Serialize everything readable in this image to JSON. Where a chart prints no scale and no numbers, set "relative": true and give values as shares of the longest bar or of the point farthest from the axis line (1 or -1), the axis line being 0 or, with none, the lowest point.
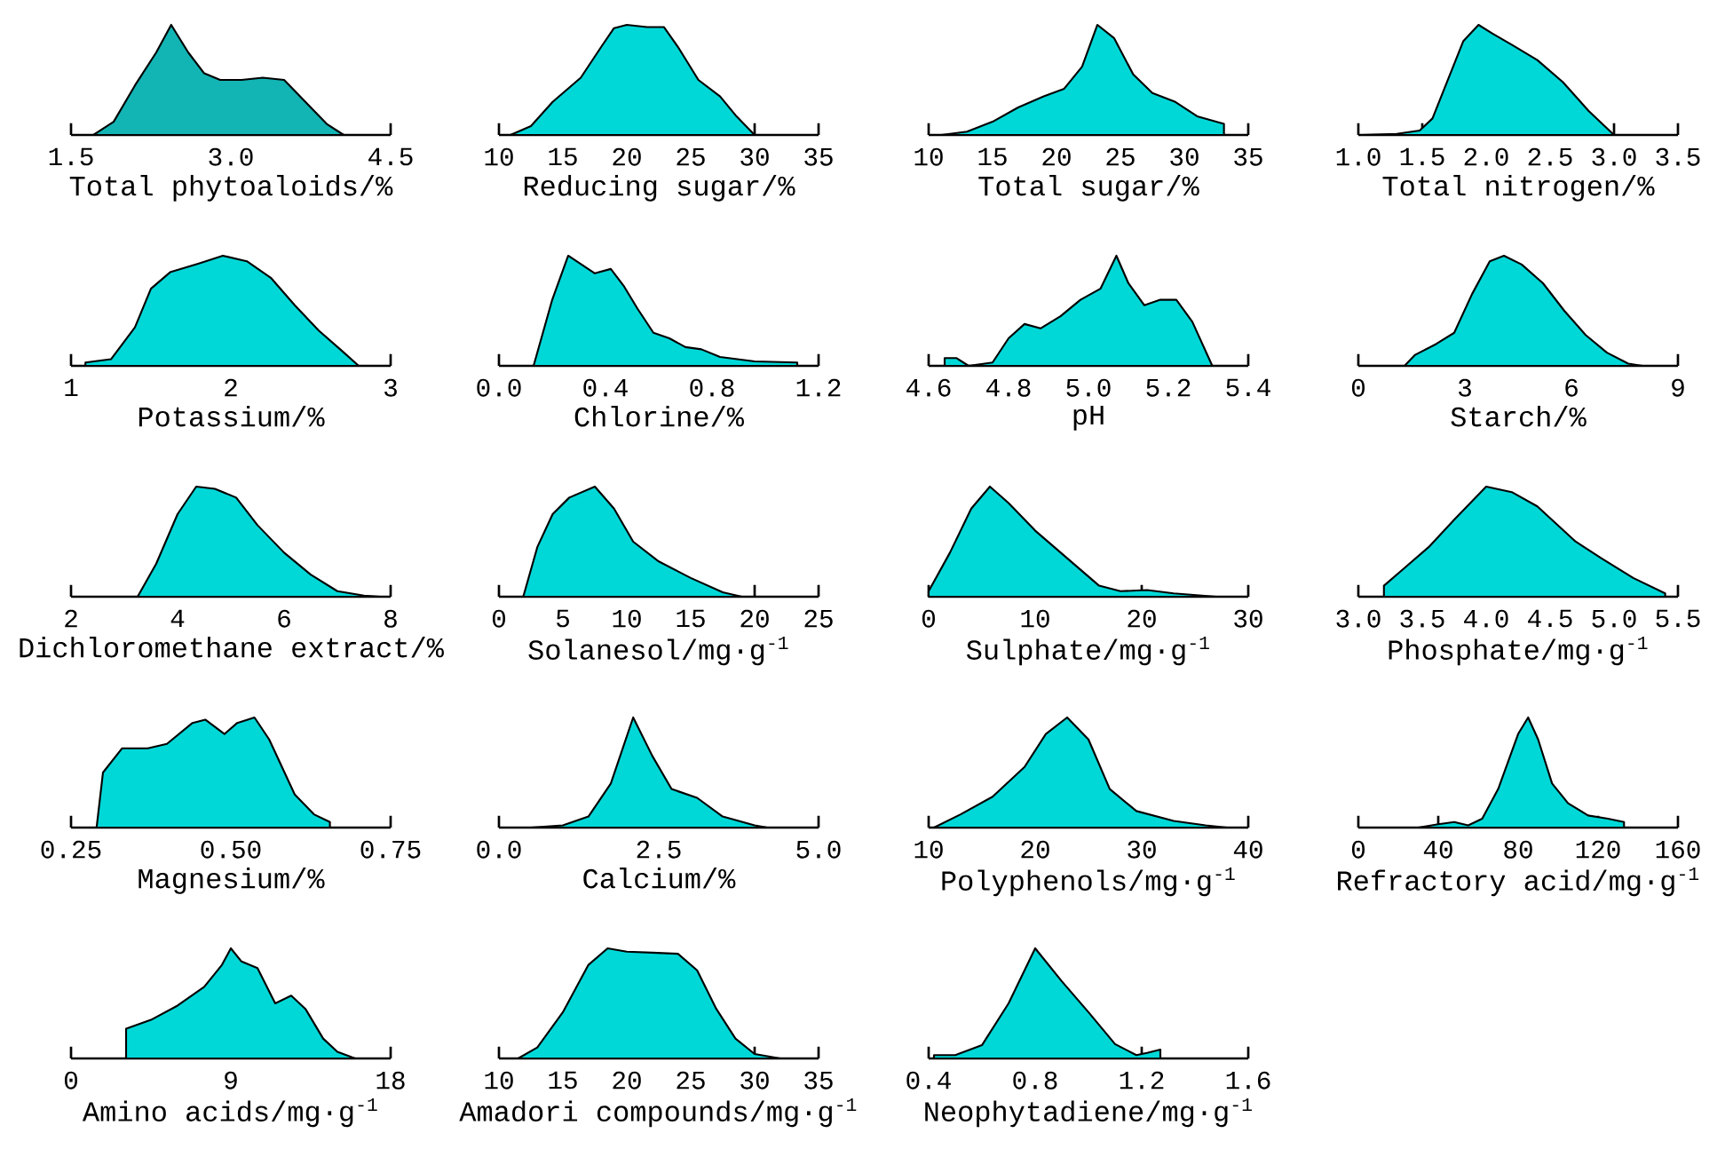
{
  "chart_data": [
    {
      "type": "area",
      "relative": true,
      "xlabel": "Total phytoaloids/%",
      "xlim": [
        1.5,
        4.5
      ],
      "xticks": [
        1.5,
        {
          "value": 3,
          "label": "3.0"
        },
        4.5
      ],
      "color": "#13b4b4",
      "x": [
        1.71,
        1.9,
        2.1,
        2.3,
        2.44,
        2.6,
        2.75,
        2.9,
        3.1,
        3.3,
        3.5,
        3.7,
        3.9,
        4.06
      ],
      "values": [
        0,
        0.12,
        0.45,
        0.75,
        1.0,
        0.75,
        0.56,
        0.5,
        0.5,
        0.52,
        0.5,
        0.3,
        0.1,
        0
      ]
    },
    {
      "type": "area",
      "relative": true,
      "xlabel": "Reducing sugar/%",
      "xlim": [
        10,
        35
      ],
      "xticks": [
        10,
        15,
        20,
        25,
        30,
        35
      ],
      "color": "#00d8d8",
      "x": [
        10.9,
        12.5,
        14.2,
        16.4,
        18,
        19,
        20,
        21.6,
        22.9,
        24,
        25.6,
        27.3,
        28.5,
        30
      ],
      "values": [
        0,
        0.08,
        0.3,
        0.52,
        0.8,
        0.97,
        1.0,
        0.98,
        0.98,
        0.8,
        0.5,
        0.35,
        0.18,
        0
      ]
    },
    {
      "type": "area",
      "relative": true,
      "xlabel": "Total sugar/%",
      "xlim": [
        10,
        35
      ],
      "xticks": [
        10,
        15,
        20,
        25,
        30,
        35
      ],
      "color": "#00d8d8",
      "x": [
        11,
        13,
        15,
        17,
        19,
        20.6,
        22,
        23.2,
        24.5,
        26,
        27.5,
        29.3,
        31,
        33.1,
        33.1
      ],
      "values": [
        0,
        0.03,
        0.12,
        0.25,
        0.35,
        0.42,
        0.62,
        1.0,
        0.88,
        0.55,
        0.38,
        0.3,
        0.17,
        0.1,
        0
      ]
    },
    {
      "type": "area",
      "relative": true,
      "xlabel": "Total nitrogen/%",
      "xlim": [
        1,
        3.5
      ],
      "xticks": [
        {
          "value": 1,
          "label": "1.0"
        },
        1.5,
        {
          "value": 2,
          "label": "2.0"
        },
        2.5,
        {
          "value": 3,
          "label": "3.0"
        },
        3.5
      ],
      "color": "#00d8d8",
      "x": [
        1.03,
        1.3,
        1.48,
        1.58,
        1.7,
        1.82,
        1.94,
        2.05,
        2.2,
        2.4,
        2.6,
        2.8,
        3.0
      ],
      "values": [
        0,
        0.01,
        0.04,
        0.15,
        0.5,
        0.85,
        1.0,
        0.92,
        0.82,
        0.68,
        0.48,
        0.22,
        0
      ]
    },
    {
      "type": "area",
      "relative": true,
      "xlabel": "Potassium/%",
      "xlim": [
        1,
        3
      ],
      "xticks": [
        1,
        2,
        3
      ],
      "color": "#00d8d8",
      "x": [
        1.09,
        1.09,
        1.25,
        1.4,
        1.5,
        1.62,
        1.8,
        1.95,
        2.1,
        2.25,
        2.4,
        2.55,
        2.7,
        2.8
      ],
      "values": [
        0,
        0.03,
        0.06,
        0.35,
        0.7,
        0.85,
        0.93,
        1.0,
        0.95,
        0.8,
        0.55,
        0.32,
        0.13,
        0
      ]
    },
    {
      "type": "area",
      "relative": true,
      "xlabel": "Chlorine/%",
      "xlim": [
        0,
        1.2
      ],
      "xticks": [
        {
          "value": 0,
          "label": "0.0"
        },
        0.4,
        0.8,
        1.2
      ],
      "color": "#00d8d8",
      "x": [
        0.13,
        0.2,
        0.26,
        0.31,
        0.36,
        0.42,
        0.47,
        0.52,
        0.58,
        0.64,
        0.7,
        0.76,
        0.83,
        0.96,
        1.12,
        1.12
      ],
      "values": [
        0,
        0.6,
        1.0,
        0.92,
        0.84,
        0.88,
        0.72,
        0.52,
        0.3,
        0.25,
        0.17,
        0.15,
        0.08,
        0.04,
        0.03,
        0
      ]
    },
    {
      "type": "area",
      "relative": true,
      "xlabel": "pH",
      "xlim": [
        4.6,
        5.4
      ],
      "xticks": [
        4.6,
        4.8,
        {
          "value": 5,
          "label": "5.0"
        },
        5.2,
        5.4
      ],
      "color": "#00d8d8",
      "x": [
        4.64,
        4.64,
        4.67,
        4.7,
        4.76,
        4.8,
        4.84,
        4.88,
        4.93,
        4.98,
        5.03,
        5.07,
        5.1,
        5.14,
        5.18,
        5.22,
        5.26,
        5.31
      ],
      "values": [
        0,
        0.07,
        0.07,
        0,
        0.03,
        0.25,
        0.38,
        0.34,
        0.45,
        0.6,
        0.7,
        1.0,
        0.75,
        0.55,
        0.6,
        0.6,
        0.4,
        0
      ]
    },
    {
      "type": "area",
      "relative": true,
      "xlabel": "Starch/%",
      "xlim": [
        0,
        9
      ],
      "xticks": [
        0,
        3,
        6,
        9
      ],
      "color": "#00d8d8",
      "x": [
        1.3,
        1.6,
        2.2,
        2.7,
        3.2,
        3.7,
        4.1,
        4.6,
        5.2,
        5.8,
        6.4,
        7.0,
        7.6,
        8
      ],
      "values": [
        0,
        0.1,
        0.2,
        0.3,
        0.65,
        0.95,
        1.0,
        0.92,
        0.75,
        0.5,
        0.28,
        0.12,
        0.02,
        0
      ]
    },
    {
      "type": "area",
      "relative": true,
      "xlabel": "Dichloromethane extract/%",
      "xlim": [
        2,
        8
      ],
      "xticks": [
        2,
        4,
        6,
        8
      ],
      "color": "#00d8d8",
      "x": [
        3.25,
        3.6,
        4.0,
        4.35,
        4.7,
        5.1,
        5.5,
        6.0,
        6.5,
        7.0,
        7.5,
        7.8
      ],
      "values": [
        0,
        0.3,
        0.75,
        1.0,
        0.98,
        0.9,
        0.65,
        0.4,
        0.2,
        0.05,
        0.01,
        0
      ]
    },
    {
      "type": "area",
      "relative": true,
      "xlabel": "Solanesol/mg·g$^{-1}$",
      "xlim": [
        0,
        25
      ],
      "xticks": [
        0,
        5,
        10,
        15,
        20,
        25
      ],
      "color": "#00d8d8",
      "x": [
        1.9,
        3,
        4.2,
        5.5,
        7.5,
        9,
        10.5,
        12.5,
        15,
        17.5,
        19,
        20
      ],
      "values": [
        0,
        0.45,
        0.75,
        0.9,
        1.0,
        0.8,
        0.5,
        0.32,
        0.17,
        0.04,
        0,
        0
      ]
    },
    {
      "type": "area",
      "relative": true,
      "xlabel": "Sulphate/mg·g$^{-1}$",
      "xlim": [
        0,
        30
      ],
      "xticks": [
        0,
        10,
        20,
        30
      ],
      "color": "#00d8d8",
      "x": [
        0,
        0,
        2,
        4,
        5.75,
        7.5,
        10,
        13,
        16,
        18,
        20.5,
        23,
        27
      ],
      "values": [
        0,
        0.05,
        0.4,
        0.8,
        1.0,
        0.85,
        0.6,
        0.35,
        0.1,
        0.05,
        0.06,
        0.03,
        0
      ]
    },
    {
      "type": "area",
      "relative": true,
      "xlabel": "Phosphate/mg·g$^{-1}$",
      "xlim": [
        3,
        5.5
      ],
      "xticks": [
        {
          "value": 3,
          "label": "3.0"
        },
        3.5,
        {
          "value": 4,
          "label": "4.0"
        },
        4.5,
        {
          "value": 5,
          "label": "5.0"
        },
        5.5
      ],
      "color": "#00d8d8",
      "x": [
        3.2,
        3.2,
        3.35,
        3.55,
        3.75,
        4.0,
        4.2,
        4.4,
        4.7,
        4.9,
        5.15,
        5.4
      ],
      "values": [
        0,
        0.1,
        0.25,
        0.45,
        0.7,
        1.0,
        0.95,
        0.82,
        0.5,
        0.35,
        0.17,
        0.03
      ]
    },
    {
      "type": "area",
      "relative": true,
      "xlabel": "Magnesium/%",
      "xlim": [
        0.25,
        0.75
      ],
      "xticks": [
        0.25,
        {
          "value": 0.5,
          "label": "0.50"
        },
        0.75
      ],
      "color": "#00d8d8",
      "x": [
        0.29,
        0.3,
        0.33,
        0.37,
        0.4,
        0.44,
        0.46,
        0.49,
        0.51,
        0.537,
        0.56,
        0.6,
        0.63,
        0.655,
        0.655
      ],
      "values": [
        0,
        0.5,
        0.72,
        0.72,
        0.76,
        0.95,
        0.98,
        0.85,
        0.95,
        1.0,
        0.8,
        0.3,
        0.12,
        0.05,
        0
      ]
    },
    {
      "type": "area",
      "relative": true,
      "xlabel": "Calcium/%",
      "xlim": [
        0,
        5
      ],
      "xticks": [
        {
          "value": 0,
          "label": "0.0"
        },
        2.5,
        {
          "value": 5,
          "label": "5.0"
        }
      ],
      "color": "#00d8d8",
      "x": [
        0.5,
        1.0,
        1.4,
        1.75,
        2.1,
        2.4,
        2.7,
        3.1,
        3.5,
        4.0,
        4.2
      ],
      "values": [
        0,
        0.02,
        0.1,
        0.4,
        1.0,
        0.65,
        0.35,
        0.27,
        0.1,
        0.02,
        0
      ]
    },
    {
      "type": "area",
      "relative": true,
      "xlabel": "Polyphenols/mg·g$^{-1}$",
      "xlim": [
        10,
        40
      ],
      "xticks": [
        10,
        20,
        30,
        40
      ],
      "color": "#00d8d8",
      "x": [
        10.5,
        13,
        16,
        19,
        21,
        23,
        25,
        27,
        29.5,
        33,
        36,
        38
      ],
      "values": [
        0,
        0.12,
        0.28,
        0.55,
        0.85,
        1.0,
        0.8,
        0.35,
        0.15,
        0.06,
        0.02,
        0
      ]
    },
    {
      "type": "area",
      "relative": true,
      "xlabel": "Refractory acid/mg·g$^{-1}$",
      "xlim": [
        0,
        160
      ],
      "xticks": [
        0,
        40,
        80,
        120,
        160
      ],
      "color": "#00d8d8",
      "x": [
        30,
        40,
        48,
        55,
        62,
        70,
        80,
        85,
        90,
        97,
        105,
        115,
        125,
        133,
        133
      ],
      "values": [
        0,
        0.03,
        0.05,
        0.02,
        0.08,
        0.35,
        0.85,
        1.0,
        0.8,
        0.4,
        0.22,
        0.11,
        0.08,
        0.05,
        0
      ]
    },
    {
      "type": "area",
      "relative": true,
      "xlabel": "Amino acids/mg·g$^{-1}$",
      "xlim": [
        0,
        18
      ],
      "xticks": [
        0,
        9,
        18
      ],
      "color": "#00d8d8",
      "x": [
        3.1,
        3.1,
        4.5,
        6.0,
        7.5,
        8.5,
        9.0,
        9.6,
        10.5,
        11.5,
        12.4,
        13.2,
        14.2,
        15,
        16
      ],
      "values": [
        0,
        0.27,
        0.35,
        0.48,
        0.65,
        0.85,
        1.0,
        0.88,
        0.82,
        0.5,
        0.57,
        0.45,
        0.18,
        0.06,
        0
      ]
    },
    {
      "type": "area",
      "relative": true,
      "xlabel": "Amadori compounds/mg·g$^{-1}$",
      "xlim": [
        10,
        35
      ],
      "xticks": [
        10,
        15,
        20,
        25,
        30,
        35
      ],
      "color": "#00d8d8",
      "x": [
        11.5,
        13,
        15,
        17,
        18.5,
        20,
        22,
        24,
        25.5,
        27,
        28.5,
        30,
        32
      ],
      "values": [
        0,
        0.1,
        0.42,
        0.85,
        1.0,
        0.97,
        0.96,
        0.95,
        0.8,
        0.45,
        0.18,
        0.04,
        0
      ]
    },
    {
      "type": "area",
      "relative": true,
      "xlabel": "Neophytadiene/mg·g$^{-1}$",
      "xlim": [
        0.4,
        1.6
      ],
      "xticks": [
        0.4,
        0.8,
        1.2,
        1.6
      ],
      "color": "#00d8d8",
      "x": [
        0.42,
        0.42,
        0.5,
        0.6,
        0.7,
        0.8,
        0.9,
        1.0,
        1.1,
        1.18,
        1.22,
        1.27,
        1.27
      ],
      "values": [
        0,
        0.03,
        0.03,
        0.12,
        0.5,
        1.0,
        0.7,
        0.42,
        0.13,
        0.03,
        0.05,
        0.08,
        0
      ]
    }
  ]
}
